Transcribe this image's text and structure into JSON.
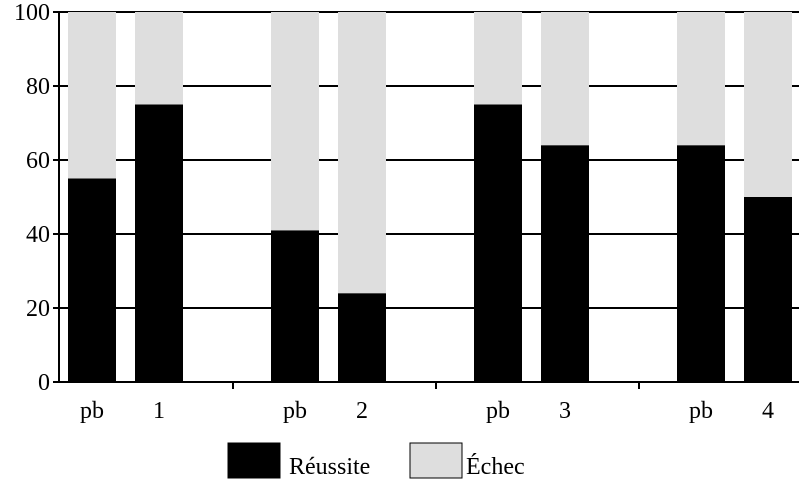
{
  "chart_data": {
    "type": "bar",
    "stacked": true,
    "ylim": [
      0,
      100
    ],
    "yticks": [
      0,
      20,
      40,
      60,
      80,
      100
    ],
    "grid": "horizontal",
    "categories": [
      "pb",
      "1",
      "pb",
      "2",
      "pb",
      "3",
      "pb",
      "4"
    ],
    "groups": [
      {
        "categories": [
          "pb",
          "1"
        ]
      },
      {
        "categories": [
          "pb",
          "2"
        ]
      },
      {
        "categories": [
          "pb",
          "3"
        ]
      },
      {
        "categories": [
          "pb",
          "4"
        ]
      }
    ],
    "series": [
      {
        "name": "Réussite",
        "color": "#000000",
        "values": [
          55,
          75,
          41,
          24,
          75,
          64,
          64,
          50
        ]
      },
      {
        "name": "Échec",
        "color": "#dedede",
        "values": [
          45,
          25,
          59,
          76,
          25,
          36,
          36,
          50
        ]
      }
    ],
    "legend": "bottom-center",
    "title": "",
    "xlabel": "",
    "ylabel": ""
  }
}
